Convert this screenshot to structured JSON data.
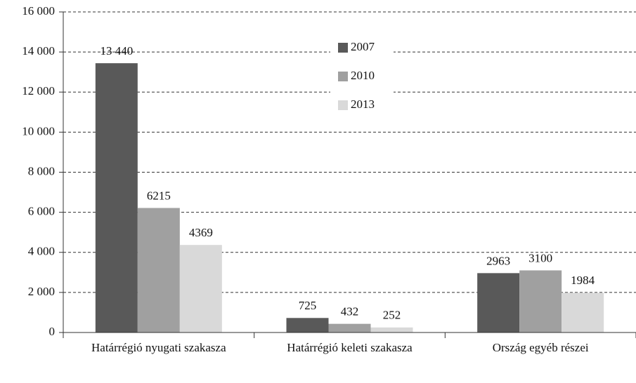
{
  "chart_data": {
    "type": "bar",
    "categories": [
      "Határrégió nyugati szakasza",
      "Határrégió keleti szakasza",
      "Ország egyéb részei"
    ],
    "series": [
      {
        "name": "2007",
        "color": "#595959",
        "values": [
          13440,
          725,
          2963
        ],
        "value_labels": [
          "13 440",
          "725",
          "2963"
        ]
      },
      {
        "name": "2010",
        "color": "#a0a0a0",
        "values": [
          6215,
          432,
          3100
        ],
        "value_labels": [
          "6215",
          "432",
          "3100"
        ]
      },
      {
        "name": "2013",
        "color": "#d9d9d9",
        "values": [
          4369,
          252,
          1984
        ],
        "value_labels": [
          "4369",
          "252",
          "1984"
        ]
      }
    ],
    "ylim": [
      0,
      16000
    ],
    "yticks": [
      0,
      {
        "value": 2000,
        "label": "2 000"
      },
      {
        "value": 4000,
        "label": "4 000"
      },
      {
        "value": 6000,
        "label": "6 000"
      },
      {
        "value": 8000,
        "label": "8 000"
      },
      {
        "value": 10000,
        "label": "10 000"
      },
      {
        "value": 12000,
        "label": "12 000"
      },
      {
        "value": 14000,
        "label": "14 000"
      },
      {
        "value": 16000,
        "label": "16 000"
      }
    ],
    "grid": true,
    "legend": "top"
  }
}
